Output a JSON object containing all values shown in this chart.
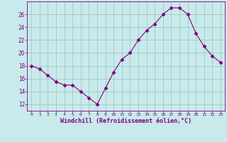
{
  "x": [
    0,
    1,
    2,
    3,
    4,
    5,
    6,
    7,
    8,
    9,
    10,
    11,
    12,
    13,
    14,
    15,
    16,
    17,
    18,
    19,
    20,
    21,
    22,
    23
  ],
  "y": [
    18.0,
    17.5,
    16.5,
    15.5,
    15.0,
    15.0,
    14.0,
    13.0,
    12.0,
    14.5,
    17.0,
    19.0,
    20.0,
    22.0,
    23.5,
    24.5,
    26.0,
    27.0,
    27.0,
    26.0,
    23.0,
    21.0,
    19.5,
    18.5
  ],
  "line_color": "#800080",
  "marker": "D",
  "marker_size": 2.5,
  "bg_color": "#c8eaea",
  "grid_color": "#a0c8c8",
  "xlabel": "Windchill (Refroidissement éolien,°C)",
  "xlabel_color": "#800080",
  "tick_color": "#800080",
  "spine_color": "#800080",
  "ylim": [
    11,
    28
  ],
  "xlim": [
    -0.5,
    23.5
  ],
  "yticks": [
    12,
    14,
    16,
    18,
    20,
    22,
    24,
    26
  ],
  "xticks": [
    0,
    1,
    2,
    3,
    4,
    5,
    6,
    7,
    8,
    9,
    10,
    11,
    12,
    13,
    14,
    15,
    16,
    17,
    18,
    19,
    20,
    21,
    22,
    23
  ],
  "figsize": [
    3.2,
    2.0
  ],
  "dpi": 100
}
